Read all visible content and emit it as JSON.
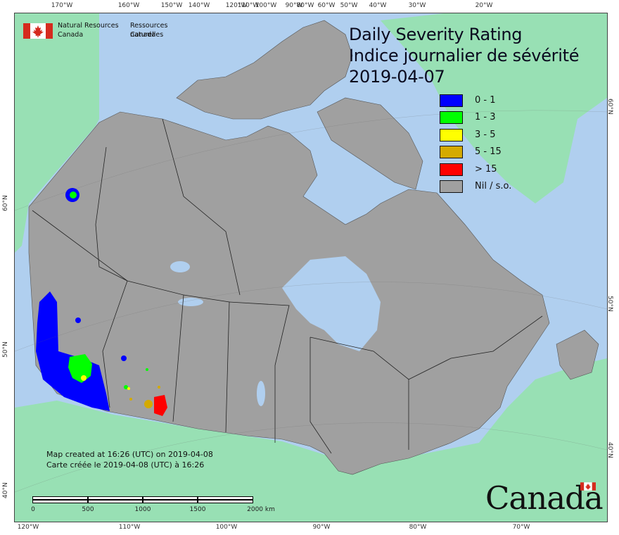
{
  "title": {
    "line1": "Daily Severity Rating",
    "line2": "Indice journalier de sévérité",
    "date": "2019-04-07"
  },
  "agency": {
    "english_line1": "Natural Resources",
    "english_line2": "Canada",
    "french_line1": "Ressources naturelles",
    "french_line2": "Canada",
    "flag_icon": "canada-flag-icon"
  },
  "legend": [
    {
      "label": "0 - 1",
      "color": "#0000ff"
    },
    {
      "label": "1 - 3",
      "color": "#00ff00"
    },
    {
      "label": "3 - 5",
      "color": "#ffff00"
    },
    {
      "label": "5 - 15",
      "color": "#d4aa00"
    },
    {
      "label": "> 15",
      "color": "#ff0000"
    },
    {
      "label": "Nil / s.o.",
      "color": "#a0a0a0"
    }
  ],
  "credit": {
    "english": "Map created at 16:26 (UTC) on 2019-04-08",
    "french": "Carte créée le 2019-04-08 (UTC) à 16:26"
  },
  "scale": {
    "labels": [
      "0",
      "500",
      "1000",
      "1500",
      "2000  km"
    ]
  },
  "graticule": {
    "top_longitudes": [
      "170°W",
      "160°W",
      "150°W",
      "140°W",
      "120°W",
      "110°W",
      "100°W",
      "90°W",
      "80°W",
      "60°W",
      "50°W",
      "40°W",
      "30°W",
      "20°W"
    ],
    "bottom_longitudes": [
      "120°W",
      "110°W",
      "100°W",
      "90°W",
      "80°W",
      "70°W"
    ],
    "left_latitudes": [
      "60°N",
      "50°N",
      "40°N"
    ],
    "right_latitudes": [
      "60°N",
      "50°N",
      "40°N"
    ]
  },
  "wordmark": "Canada",
  "colors": {
    "ocean": "#b0cfef",
    "land_other": "#98e0b4",
    "canada_nil": "#a0a0a0",
    "water_lake": "#b0cfef",
    "province_border": "#222222"
  }
}
